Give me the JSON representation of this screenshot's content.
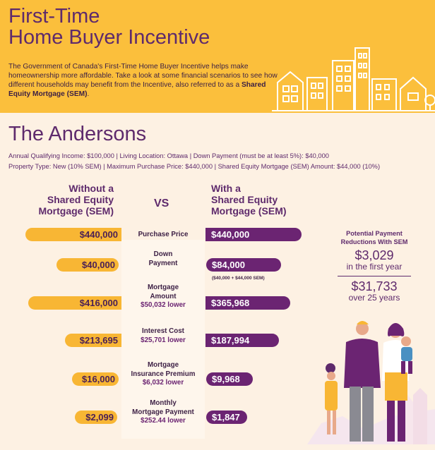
{
  "header": {
    "title_line1": "First-Time",
    "title_line2": "Home Buyer Incentive",
    "intro_text": "The Government of Canada's First-Time Home Buyer Incentive helps make homeownership more affordable. Take a look at some financial scenarios to see how different households may benefit from the Incentive, also referred to as a ",
    "intro_bold": "Shared Equity Mortgage (SEM)",
    "intro_end": "."
  },
  "family": {
    "name": "The Andersons",
    "details_line1": "Annual Qualifying Income: $100,000  |  Living Location: Ottawa  |  Down Payment (must be at least 5%): $40,000",
    "details_line2": "Property Type: New (10% SEM)  |  Maximum Purchase Price: $440,000  |  Shared Equity Mortgage (SEM) Amount: $44,000 (10%)"
  },
  "comparison": {
    "left_heading": [
      "Without a",
      "Shared Equity",
      "Mortgage (SEM)"
    ],
    "vs": "VS",
    "right_heading": [
      "With a",
      "Shared Equity",
      "Mortgage (SEM)"
    ],
    "rows": [
      {
        "label": [
          "Purchase Price"
        ],
        "sub": "",
        "without": "$440,000",
        "with": "$440,000",
        "without_value": 440000,
        "with_value": 440000
      },
      {
        "label": [
          "Down",
          "Payment"
        ],
        "sub": "",
        "without": "$40,000",
        "with": "$84,000",
        "without_value": 40000,
        "with_value": 84000
      },
      {
        "label": [
          "Mortgage",
          "Amount"
        ],
        "sub": "$50,032 lower",
        "without": "$416,000",
        "with": "$365,968",
        "without_value": 416000,
        "with_value": 365968
      },
      {
        "label": [
          "Interest Cost"
        ],
        "sub": "$25,701 lower",
        "without": "$213,695",
        "with": "$187,994",
        "without_value": 213695,
        "with_value": 187994
      },
      {
        "label": [
          "Mortgage",
          "Insurance Premium"
        ],
        "sub": "$6,032 lower",
        "without": "$16,000",
        "with": "$9,968",
        "without_value": 16000,
        "with_value": 9968
      },
      {
        "label": [
          "Monthly",
          "Mortgage Payment"
        ],
        "sub": "$252.44 lower",
        "without": "$2,099",
        "with": "$1,847",
        "without_value": 2099,
        "with_value": 1847
      }
    ],
    "down_payment_note": "($40,000 + $44,000 SEM)"
  },
  "reductions": {
    "title_line1": "Potential Payment",
    "title_line2": "Reductions With SEM",
    "amount1": "$3,029",
    "period1": "in the first year",
    "amount2": "$31,733",
    "period2": "over 25 years"
  },
  "colors": {
    "header_bg": "#fbbf3c",
    "page_bg": "#fdf1e3",
    "without_bar": "#f8b634",
    "with_bar": "#6b2472",
    "heading": "#5e2a6c"
  }
}
